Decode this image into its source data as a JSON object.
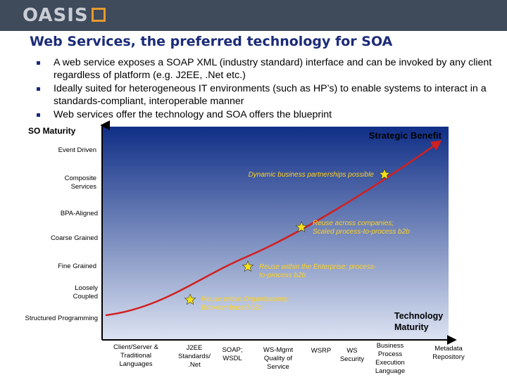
{
  "header": {
    "logo_text": "OASIS"
  },
  "title": "Web Services, the preferred technology for SOA",
  "bullets": [
    "A web service exposes a SOAP XML (industry standard) interface and can be invoked by any client regardless of platform (e.g. J2EE, .Net etc.)",
    "Ideally suited for heterogeneous IT environments (such as HP’s) to enable systems to interact in a standards-compliant, interoperable manner",
    "Web services offer the technology and SOA offers the blueprint"
  ],
  "diagram": {
    "y_axis_title": "SO Maturity",
    "top_right_label": "Strategic Benefit",
    "x_axis_title": [
      "Technology",
      "Maturity"
    ],
    "y_levels": [
      [
        "Event Driven"
      ],
      [
        "Composite",
        "Services"
      ],
      [
        "BPA-Aligned"
      ],
      [
        "Coarse Grained"
      ],
      [
        "Fine Grained"
      ],
      [
        "Loosely",
        "Coupled"
      ],
      [
        "Structured Programming"
      ]
    ],
    "x_levels": [
      [
        "Client/Server &",
        "Traditional",
        "Languages"
      ],
      [
        "J2EE",
        "Standards/",
        ".Net"
      ],
      [
        "SOAP;",
        "WSDL"
      ],
      [
        "WS-Mgmt",
        "Quality of",
        "Service"
      ],
      [
        "WSRP"
      ],
      [
        "WS",
        "Security"
      ],
      [
        "Business",
        "Process",
        "Execution",
        "Language"
      ],
      [
        "Metadata",
        "Repository"
      ]
    ],
    "milestones": [
      [
        "Reuse within Organizations;",
        "Browser-based b2b"
      ],
      [
        "Reuse within the Enterprise; process-",
        "to-process b2b"
      ],
      [
        "Reuse across companies;",
        "Scaled process-to-process b2b"
      ],
      [
        "Dynamic business partnerships possible"
      ]
    ],
    "colors": {
      "panel_top": "#0f2e86",
      "panel_bottom": "#dce3f2",
      "curve": "#d21f1f",
      "star": "#f4e11a",
      "milestone_text": "#ffd21f",
      "header_bar": "#3f4a5a",
      "title": "#1b2b78"
    }
  }
}
